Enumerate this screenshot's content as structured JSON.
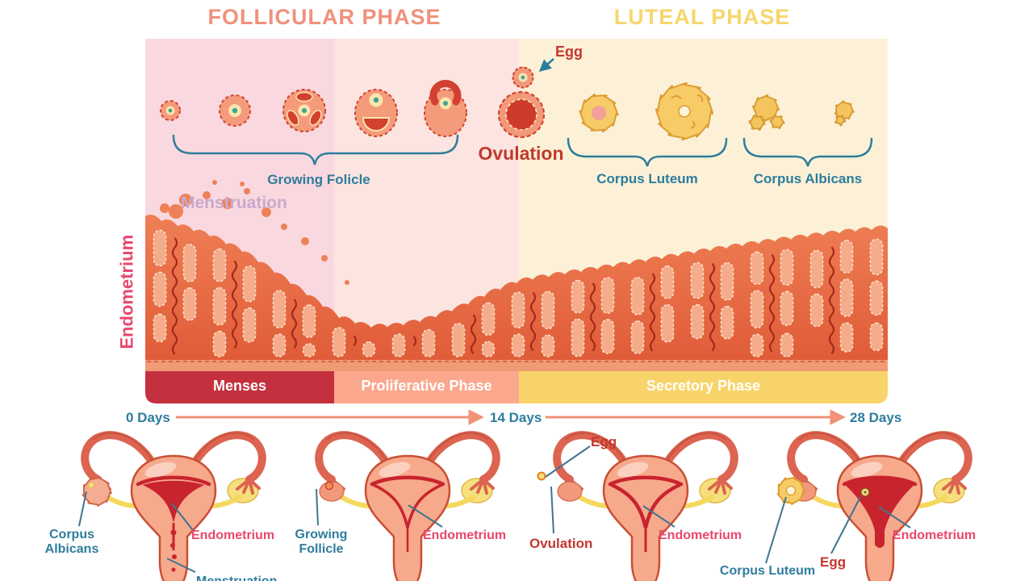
{
  "headers": {
    "follicular": "FOLLICULAR PHASE",
    "luteal": "LUTEAL PHASE"
  },
  "top": {
    "egg": "Egg",
    "ovulation": "Ovulation",
    "growing_follicle": "Growing Folicle",
    "corpus_luteum": "Corpus Luteum",
    "corpus_albicans": "Corpus Albicans",
    "menstruation": "Menstruation",
    "endometrium_axis": "Endometrium"
  },
  "phase_bar": {
    "menses": "Menses",
    "proliferative": "Proliferative Phase",
    "secretory": "Secretory Phase"
  },
  "timeline": {
    "day0": "0 Days",
    "day14": "14 Days",
    "day28": "28 Days"
  },
  "figures": [
    {
      "stage": "menses",
      "labels": {
        "corpus_albicans": "Corpus Albicans",
        "endometrium": "Endometrium",
        "menstruation": "Menstruation"
      }
    },
    {
      "stage": "follicular",
      "labels": {
        "growing_follicle": "Growing Follicle",
        "endometrium": "Endometrium"
      }
    },
    {
      "stage": "ovulation",
      "labels": {
        "egg": "Egg",
        "ovulation": "Ovulation",
        "endometrium": "Endometrium"
      }
    },
    {
      "stage": "luteal",
      "labels": {
        "corpus_luteum": "Corpus Luteum",
        "egg": "Egg",
        "endometrium": "Endometrium"
      }
    }
  ],
  "colors": {
    "teal": "#2E7D9C",
    "red": "#C4372E",
    "darkRed": "#C0392B",
    "pink": "#E8476F",
    "lavender": "#C9A9CE",
    "follicularHeader": "#F0917B",
    "lutealHeader": "#F6D66E",
    "mensesBar": "#C5303E",
    "proliferativeBar": "#FBA78E",
    "secretoryBar": "#F8D369",
    "regionMenses": "#FAD8DF",
    "regionFollicular": "#FCE4E0",
    "regionLuteal": "#FCF1D7",
    "tissueTop": "#EF7F55",
    "tissueBottom": "#E05C38",
    "timelineArrow": "#EF9277",
    "leaderLine": "#3F7490"
  }
}
